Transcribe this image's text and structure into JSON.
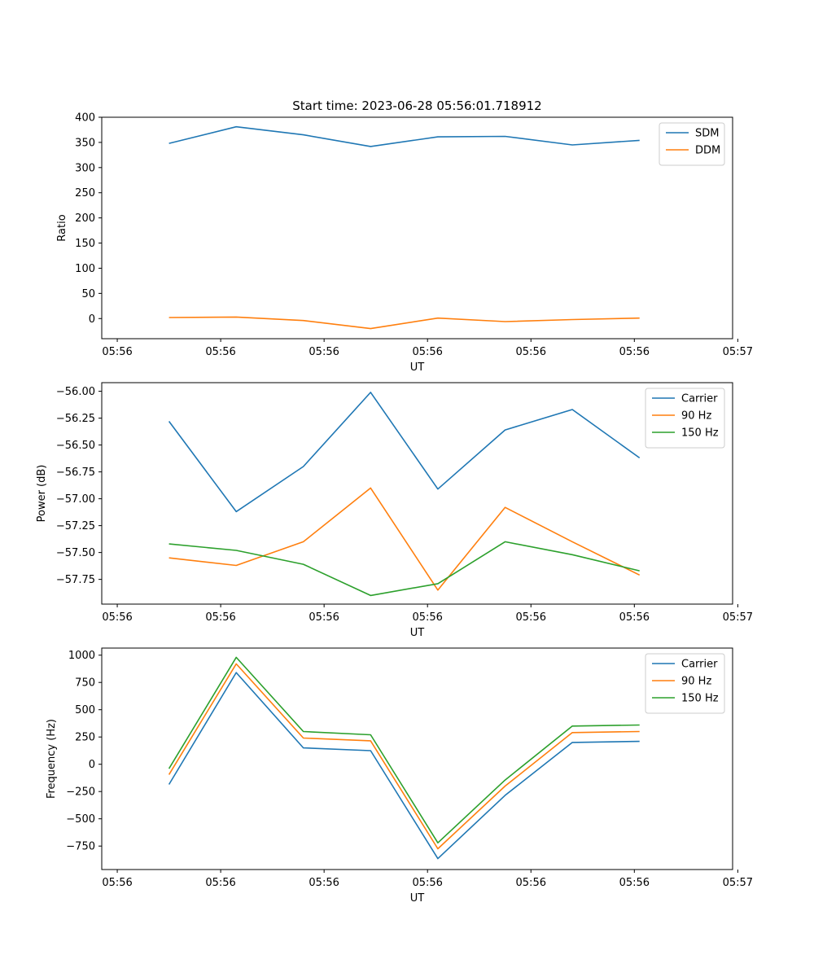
{
  "chart_data": [
    {
      "type": "line",
      "title": "Start time: 2023-06-28 05:56:01.718912",
      "xlabel": "UT",
      "ylabel": "Ratio",
      "x_tick_labels": [
        "05:56",
        "05:56",
        "05:56",
        "05:56",
        "05:56",
        "05:56",
        "05:57"
      ],
      "y_ticks": [
        0,
        50,
        100,
        150,
        200,
        250,
        300,
        350,
        400
      ],
      "ylim": [
        -40,
        400
      ],
      "legend_position": "top-right",
      "grid": false,
      "x": [
        0.5,
        1.15,
        1.8,
        2.45,
        3.1,
        3.75,
        4.4,
        5.05
      ],
      "series": [
        {
          "name": "SDM",
          "color": "#1f77b4",
          "values": [
            348,
            381,
            365,
            342,
            361,
            362,
            345,
            354
          ]
        },
        {
          "name": "DDM",
          "color": "#ff7f0e",
          "values": [
            2,
            3,
            -4,
            -20,
            1,
            -6,
            -2,
            1
          ]
        }
      ]
    },
    {
      "type": "line",
      "title": "",
      "xlabel": "UT",
      "ylabel": "Power (dB)",
      "x_tick_labels": [
        "05:56",
        "05:56",
        "05:56",
        "05:56",
        "05:56",
        "05:56",
        "05:57"
      ],
      "y_ticks": [
        -57.75,
        -57.5,
        -57.25,
        -57.0,
        -56.75,
        -56.5,
        -56.25,
        -56.0
      ],
      "y_tick_labels": [
        "−57.75",
        "−57.50",
        "−57.25",
        "−57.00",
        "−56.75",
        "−56.50",
        "−56.25",
        "−56.00"
      ],
      "ylim": [
        -57.98,
        -55.92
      ],
      "legend_position": "top-right",
      "grid": false,
      "x": [
        0.5,
        1.15,
        1.8,
        2.45,
        3.1,
        3.75,
        4.4,
        5.05
      ],
      "series": [
        {
          "name": "Carrier",
          "color": "#1f77b4",
          "values": [
            -56.28,
            -57.12,
            -56.7,
            -56.01,
            -56.91,
            -56.36,
            -56.17,
            -56.62
          ]
        },
        {
          "name": "90 Hz",
          "color": "#ff7f0e",
          "values": [
            -57.55,
            -57.62,
            -57.4,
            -56.9,
            -57.85,
            -57.08,
            -57.4,
            -57.71
          ]
        },
        {
          "name": "150 Hz",
          "color": "#2ca02c",
          "values": [
            -57.42,
            -57.48,
            -57.61,
            -57.9,
            -57.79,
            -57.4,
            -57.52,
            -57.67
          ]
        }
      ]
    },
    {
      "type": "line",
      "title": "",
      "xlabel": "UT",
      "ylabel": "Frequency (Hz)",
      "x_tick_labels": [
        "05:56",
        "05:56",
        "05:56",
        "05:56",
        "05:56",
        "05:56",
        "05:57"
      ],
      "y_ticks": [
        -750,
        -500,
        -250,
        0,
        250,
        500,
        750,
        1000
      ],
      "y_tick_labels": [
        "−750",
        "−500",
        "−250",
        "0",
        "250",
        "500",
        "750",
        "1000"
      ],
      "ylim": [
        -965,
        1065
      ],
      "legend_position": "top-right",
      "grid": false,
      "x": [
        0.5,
        1.15,
        1.8,
        2.45,
        3.1,
        3.75,
        4.4,
        5.05
      ],
      "series": [
        {
          "name": "Carrier",
          "color": "#1f77b4",
          "values": [
            -185,
            840,
            150,
            125,
            -865,
            -285,
            200,
            210
          ]
        },
        {
          "name": "90 Hz",
          "color": "#ff7f0e",
          "values": [
            -95,
            920,
            240,
            215,
            -775,
            -200,
            290,
            300
          ]
        },
        {
          "name": "150 Hz",
          "color": "#2ca02c",
          "values": [
            -40,
            980,
            300,
            270,
            -720,
            -145,
            350,
            360
          ]
        }
      ]
    }
  ]
}
